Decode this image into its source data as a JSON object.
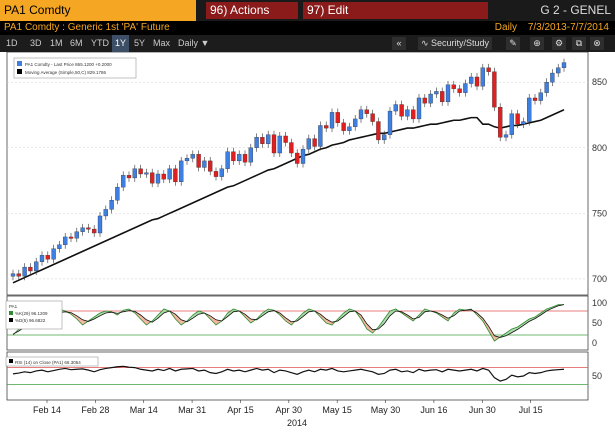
{
  "header": {
    "ticker": "PA1 Comdty",
    "actions_label": "96) Actions",
    "edit_label": "97) Edit",
    "genel": "G 2 - GENEL",
    "description": "PA1 Comdty : Generic 1st 'PA' Future",
    "frequency": "Daily",
    "date_range": "7/3/2013-7/7/2014"
  },
  "toolbar": {
    "periods": [
      "1D",
      "3D",
      "1M",
      "6M",
      "YTD",
      "1Y",
      "5Y",
      "Max"
    ],
    "selected": "1Y",
    "interval": "Daily ▼",
    "security_study": "Security/Study"
  },
  "colors": {
    "up": "#3f7fe0",
    "down": "#e02020",
    "accent": "#f5a623"
  },
  "chart_data": [
    {
      "type": "line",
      "legend": [
        "PA1 Comdty - Last Price  865.1200 +0.2000",
        "Moving Average (Simple,50,C)  829.1786"
      ],
      "x_ticks": [
        "Feb 14",
        "Feb 28",
        "Mar 14",
        "Mar 31",
        "Apr 15",
        "Apr 30",
        "May 15",
        "May 30",
        "Jun 16",
        "Jun 30",
        "Jul 15"
      ],
      "xlabel": "2014",
      "y_ticks": [
        700,
        750,
        800,
        850
      ],
      "ylim": [
        690,
        870
      ],
      "series": [
        {
          "name": "PA1 Comdty - Last Price",
          "values": [
            704,
            702,
            709,
            706,
            713,
            718,
            715,
            723,
            726,
            732,
            731,
            736,
            739,
            738,
            735,
            748,
            753,
            760,
            770,
            779,
            777,
            784,
            780,
            781,
            773,
            780,
            776,
            784,
            774,
            790,
            792,
            795,
            785,
            790,
            782,
            778,
            784,
            797,
            790,
            795,
            789,
            800,
            808,
            803,
            810,
            796,
            809,
            804,
            796,
            788,
            799,
            807,
            801,
            817,
            815,
            827,
            819,
            813,
            816,
            822,
            829,
            826,
            820,
            806,
            810,
            828,
            833,
            824,
            829,
            822,
            838,
            834,
            841,
            843,
            835,
            848,
            845,
            842,
            849,
            854,
            847,
            861,
            858,
            831,
            808,
            810,
            826,
            818,
            820,
            838,
            836,
            842,
            850,
            857,
            861,
            865
          ]
        },
        {
          "name": "Moving Average (Simple,50,C)",
          "values": [
            697,
            699,
            701,
            703,
            705,
            707,
            709,
            711,
            713,
            715,
            717,
            719,
            721,
            723,
            725,
            727,
            729,
            731,
            733,
            735,
            737,
            739,
            741,
            743,
            745,
            746,
            748,
            750,
            752,
            754,
            756,
            758,
            760,
            762,
            764,
            766,
            768,
            770,
            771,
            773,
            775,
            777,
            779,
            781,
            783,
            784,
            786,
            788,
            790,
            792,
            794,
            795,
            797,
            799,
            800,
            802,
            803,
            804,
            806,
            807,
            808,
            809,
            810,
            811,
            811,
            812,
            813,
            814,
            815,
            815,
            816,
            817,
            818,
            818,
            819,
            820,
            821,
            821,
            822,
            823,
            823,
            818,
            818,
            816,
            815,
            816,
            817,
            817,
            818,
            819,
            820,
            821,
            823,
            825,
            827,
            829
          ]
        }
      ]
    },
    {
      "type": "line",
      "legend": [
        "PA1",
        "%K(29) 96.1209",
        "%D(5) 96.6822"
      ],
      "y_ticks": [
        0,
        50,
        100
      ],
      "ylim": [
        -10,
        110
      ],
      "series": [
        {
          "name": "%K(29)",
          "values": [
            20,
            35,
            45,
            55,
            40,
            60,
            75,
            70,
            85,
            80,
            72,
            60,
            45,
            55,
            65,
            75,
            80,
            78,
            70,
            82,
            85,
            75,
            60,
            45,
            55,
            70,
            85,
            80,
            60,
            45,
            55,
            70,
            80,
            75,
            60,
            45,
            55,
            75,
            85,
            80,
            65,
            50,
            60,
            75,
            85,
            82,
            70,
            55,
            45,
            60,
            75,
            85,
            80,
            65,
            50,
            45,
            60,
            75,
            85,
            80,
            60,
            35,
            25,
            40,
            60,
            80,
            85,
            75,
            65,
            55,
            70,
            85,
            80,
            75,
            65,
            55,
            75,
            85,
            82,
            85,
            70,
            55,
            30,
            5,
            15,
            25,
            35,
            40,
            50,
            60,
            65,
            75,
            85,
            90,
            96,
            96
          ]
        },
        {
          "name": "%D(5)",
          "values": [
            22,
            30,
            40,
            48,
            48,
            55,
            65,
            68,
            76,
            78,
            76,
            68,
            58,
            54,
            60,
            68,
            75,
            77,
            74,
            78,
            81,
            79,
            70,
            58,
            52,
            62,
            75,
            80,
            72,
            58,
            53,
            62,
            72,
            75,
            68,
            58,
            55,
            66,
            78,
            80,
            72,
            60,
            58,
            68,
            78,
            81,
            75,
            63,
            53,
            55,
            66,
            78,
            80,
            72,
            60,
            52,
            55,
            66,
            78,
            80,
            70,
            48,
            33,
            35,
            48,
            68,
            80,
            78,
            70,
            60,
            64,
            78,
            80,
            77,
            70,
            62,
            68,
            80,
            82,
            83,
            75,
            62,
            42,
            18,
            14,
            18,
            26,
            34,
            44,
            54,
            61,
            70,
            80,
            87,
            93,
            96
          ]
        }
      ]
    },
    {
      "type": "line",
      "legend": [
        "RSI (14) on Close (PA1) 66.3054"
      ],
      "y_ticks": [
        50
      ],
      "ylim": [
        0,
        100
      ],
      "series": [
        {
          "name": "RSI (14) on Close (PA1)",
          "values": [
            55,
            57,
            60,
            58,
            62,
            64,
            60,
            63,
            66,
            68,
            65,
            66,
            67,
            64,
            60,
            65,
            68,
            70,
            72,
            73,
            71,
            70,
            66,
            64,
            62,
            66,
            63,
            68,
            62,
            66,
            67,
            68,
            62,
            64,
            58,
            56,
            60,
            66,
            62,
            64,
            60,
            64,
            68,
            64,
            66,
            58,
            64,
            62,
            58,
            54,
            60,
            64,
            60,
            66,
            64,
            68,
            62,
            60,
            62,
            64,
            66,
            63,
            60,
            54,
            56,
            64,
            66,
            60,
            62,
            58,
            66,
            62,
            64,
            65,
            60,
            66,
            64,
            62,
            64,
            66,
            62,
            68,
            64,
            46,
            38,
            42,
            52,
            48,
            50,
            58,
            56,
            58,
            62,
            64,
            65,
            66
          ]
        }
      ]
    }
  ]
}
